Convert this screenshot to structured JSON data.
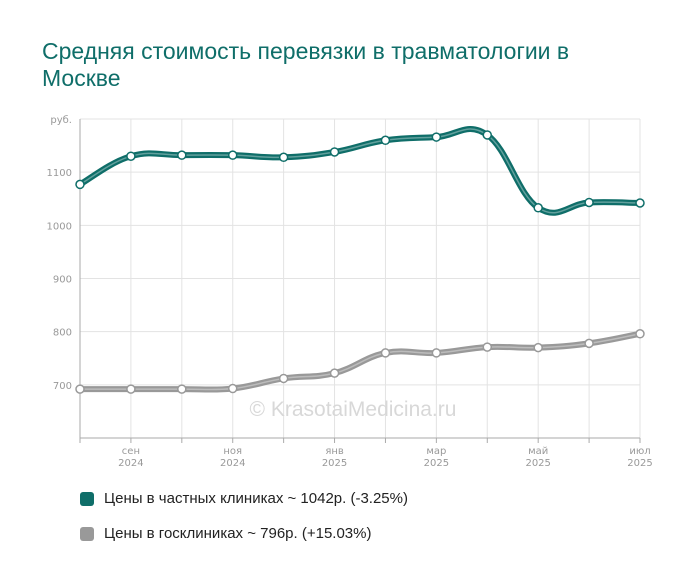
{
  "chart_data": {
    "type": "line",
    "title": "Средняя стоимость перевязки в травматологии в Москве",
    "ylabel": "руб.",
    "ylim": [
      600,
      1200
    ],
    "y_ticks": [
      700,
      800,
      900,
      1000,
      1100
    ],
    "x": [
      "2024-08-01",
      "2024-09-01",
      "2024-10-01",
      "2024-11-01",
      "2024-12-01",
      "2025-01-01",
      "2025-02-01",
      "2025-03-01",
      "2025-04-01",
      "2025-05-01",
      "2025-06-01",
      "2025-07-01"
    ],
    "x_tick_labels": [
      {
        "month": "сен",
        "year": "2024",
        "index": 1
      },
      {
        "month": "ноя",
        "year": "2024",
        "index": 3
      },
      {
        "month": "янв",
        "year": "2025",
        "index": 5
      },
      {
        "month": "мар",
        "year": "2025",
        "index": 7
      },
      {
        "month": "май",
        "year": "2025",
        "index": 9
      },
      {
        "month": "июл",
        "year": "2025",
        "index": 11
      }
    ],
    "series": [
      {
        "name": "Цены в частных клиниках ~ 1042р. (-3.25%)",
        "color": "#0f6e69",
        "values": [
          1077,
          1130,
          1132,
          1132,
          1128,
          1138,
          1160,
          1166,
          1170,
          1033,
          1043,
          1042
        ]
      },
      {
        "name": "Цены в госклиниках ~ 796р. (+15.03%)",
        "color": "#999999",
        "values": [
          692,
          692,
          692,
          693,
          712,
          722,
          760,
          760,
          771,
          770,
          778,
          796
        ]
      }
    ],
    "grid": true,
    "legend_position": "bottom",
    "watermark": "© KrasotaiMedicina.ru"
  }
}
